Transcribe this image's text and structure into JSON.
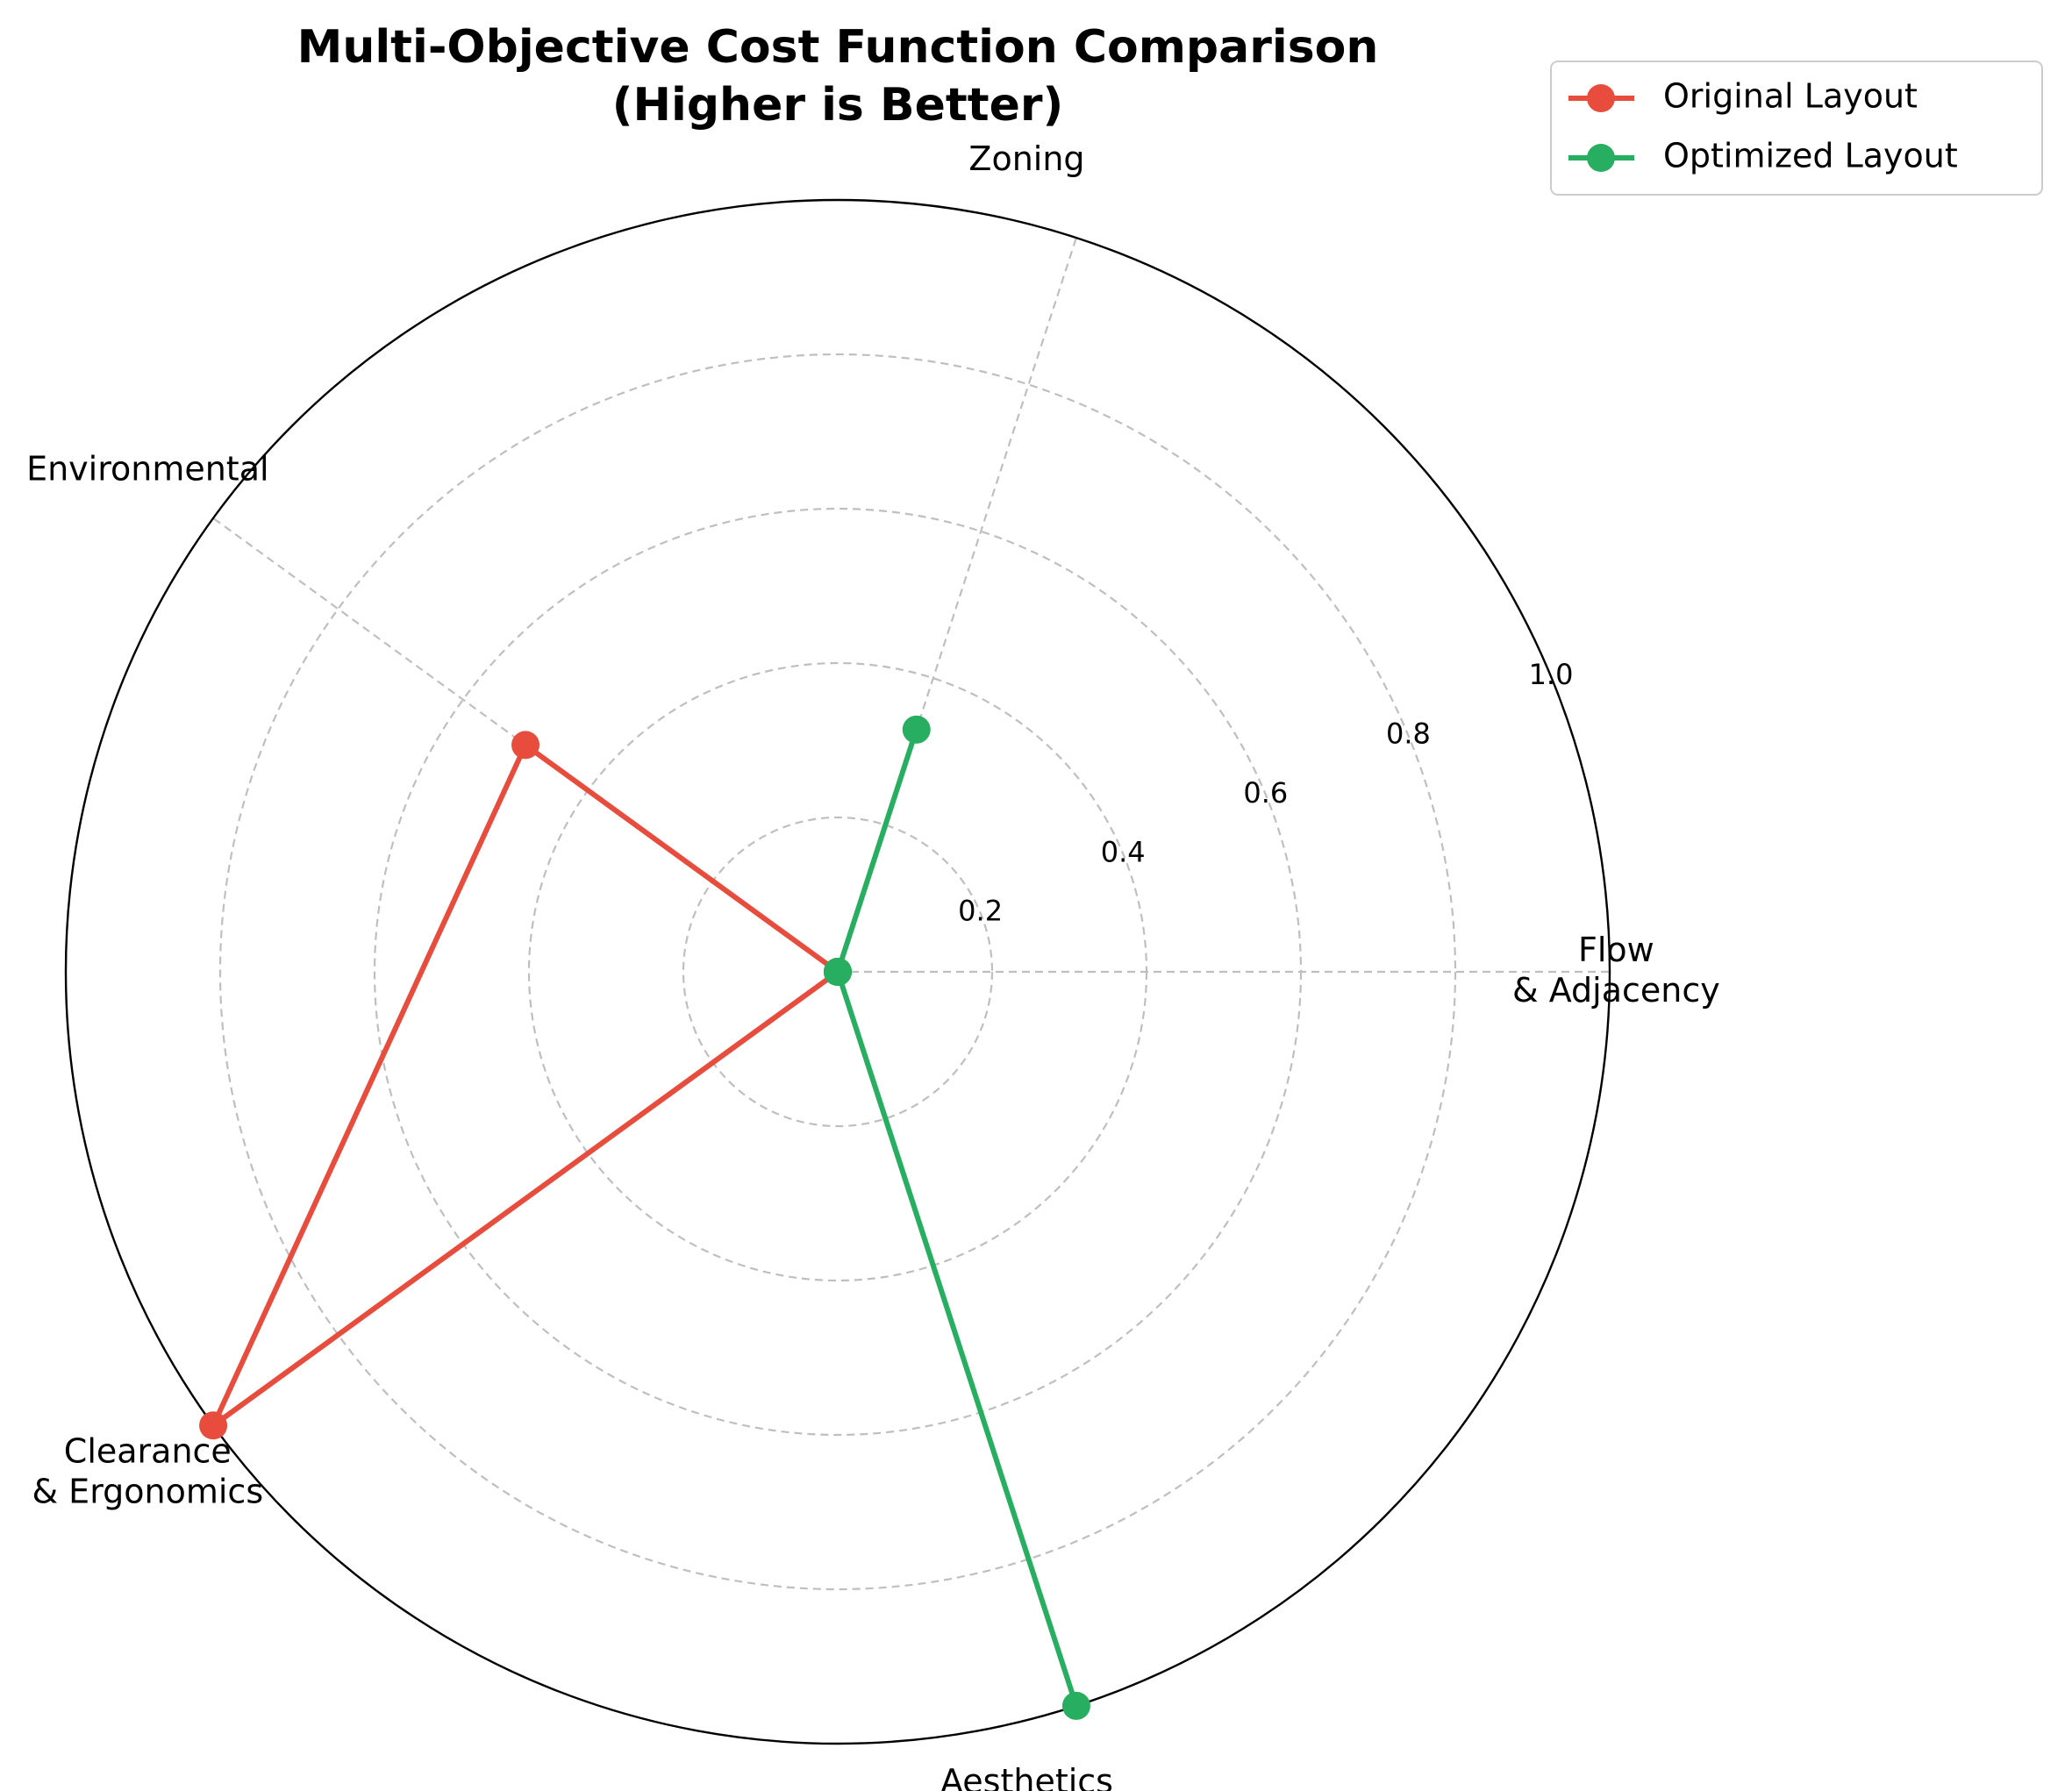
{
  "chart_data": {
    "type": "radar",
    "title": [
      "Multi-Objective Cost Function Comparison",
      "(Higher is Better)"
    ],
    "categories": [
      [
        "Flow",
        "& Adjacency"
      ],
      [
        "Zoning"
      ],
      [
        "Environmental"
      ],
      [
        "Clearance",
        "& Ergonomics"
      ],
      [
        "Aesthetics"
      ]
    ],
    "radial_ticks": [
      0.2,
      0.4,
      0.6,
      0.8,
      1.0
    ],
    "radial_tick_labels": [
      "0.2",
      "0.4",
      "0.6",
      "0.8",
      "1.0"
    ],
    "rlim": [
      0,
      1.0
    ],
    "grid": true,
    "legend_position": "top-right",
    "series": [
      {
        "name": "Original Layout",
        "color": "#e74c3c",
        "values": [
          0.0,
          0.0,
          0.5,
          1.0,
          0.0
        ]
      },
      {
        "name": "Optimized Layout",
        "color": "#27ae60",
        "values": [
          0.0,
          0.33,
          0.0,
          0.0,
          1.0
        ]
      }
    ]
  }
}
